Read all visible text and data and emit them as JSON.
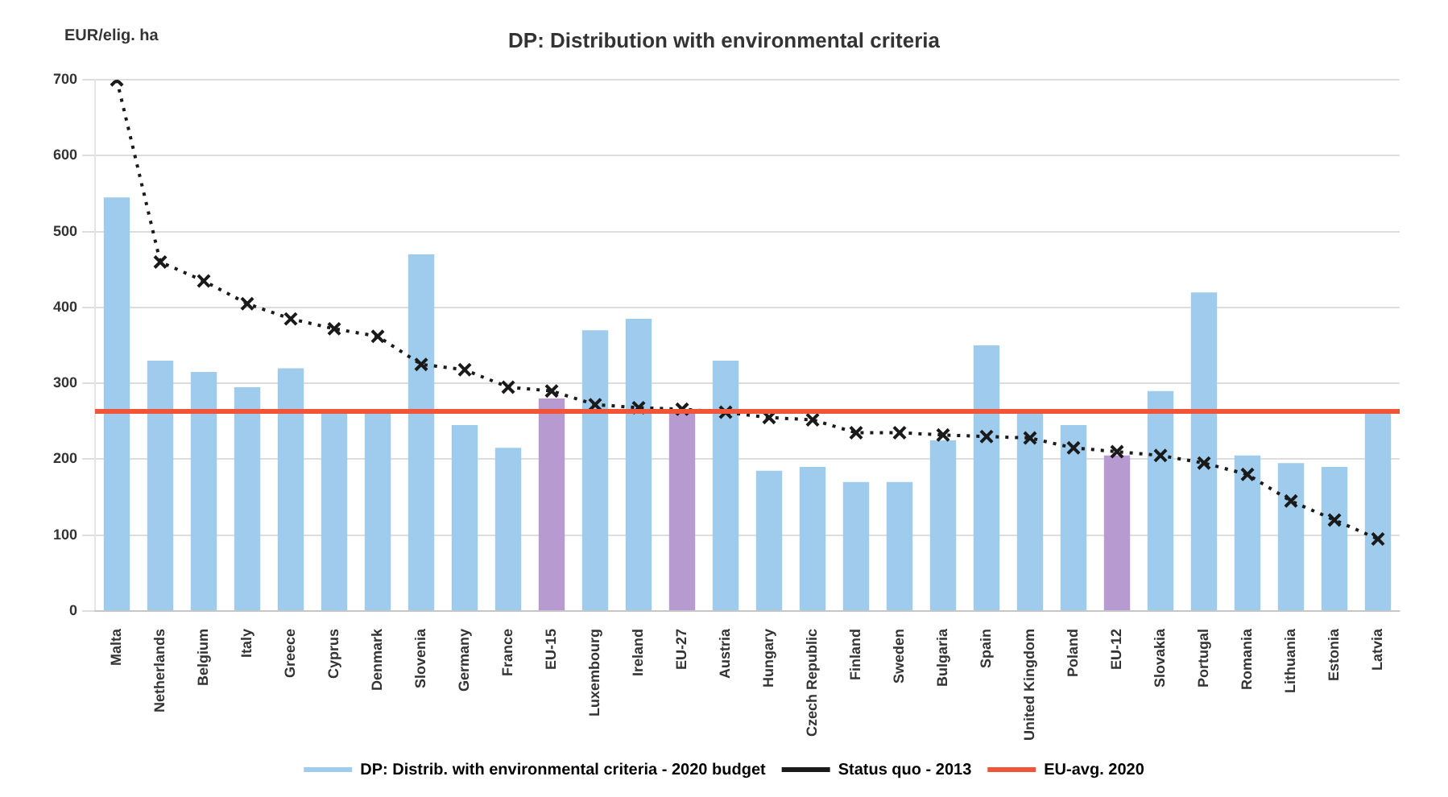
{
  "chart_data": {
    "type": "bar",
    "title": "DP: Distribution with environmental criteria",
    "ylabel": "EUR/elig. ha",
    "categories": [
      "Malta",
      "Netherlands",
      "Belgium",
      "Italy",
      "Greece",
      "Cyprus",
      "Denmark",
      "Slovenia",
      "Germany",
      "France",
      "EU-15",
      "Luxembourg",
      "Ireland",
      "EU-27",
      "Austria",
      "Hungary",
      "Czech Republic",
      "Finland",
      "Sweden",
      "Bulgaria",
      "Spain",
      "United Kingdom",
      "Poland",
      "EU-12",
      "Slovakia",
      "Portugal",
      "Romania",
      "Lithuania",
      "Estonia",
      "Latvia"
    ],
    "series": [
      {
        "name": "DP: Distrib. with environmental criteria - 2020 budget",
        "color": "#9fcbec",
        "colors": [
          "#9fcbec",
          "#9fcbec",
          "#9fcbec",
          "#9fcbec",
          "#9fcbec",
          "#9fcbec",
          "#9fcbec",
          "#9fcbec",
          "#9fcbec",
          "#9fcbec",
          "#b69ad0",
          "#9fcbec",
          "#9fcbec",
          "#b69ad0",
          "#9fcbec",
          "#9fcbec",
          "#9fcbec",
          "#9fcbec",
          "#9fcbec",
          "#9fcbec",
          "#9fcbec",
          "#9fcbec",
          "#9fcbec",
          "#b69ad0",
          "#9fcbec",
          "#9fcbec",
          "#9fcbec",
          "#9fcbec",
          "#9fcbec",
          "#9fcbec"
        ],
        "values": [
          545,
          330,
          315,
          295,
          320,
          265,
          265,
          470,
          245,
          215,
          280,
          370,
          385,
          265,
          330,
          185,
          190,
          170,
          170,
          225,
          350,
          265,
          245,
          205,
          290,
          420,
          205,
          195,
          190,
          260
        ]
      },
      {
        "name": "Status quo - 2013",
        "type": "line",
        "color": "#1a1a1a",
        "marker": "cross",
        "line_style": "dotted",
        "values": [
          700,
          460,
          435,
          405,
          385,
          372,
          362,
          325,
          318,
          295,
          290,
          272,
          268,
          266,
          262,
          255,
          252,
          235,
          235,
          232,
          230,
          228,
          215,
          210,
          205,
          195,
          180,
          145,
          120,
          95
        ]
      }
    ],
    "ref_lines": [
      {
        "axis": "y",
        "value": 263,
        "label": "EU-avg. 2020",
        "color": "#f0553a"
      }
    ],
    "ylim": [
      0,
      700
    ],
    "yticks": [
      0,
      100,
      200,
      300,
      400,
      500,
      600,
      700
    ],
    "grid": "y",
    "legend": "bottom"
  }
}
